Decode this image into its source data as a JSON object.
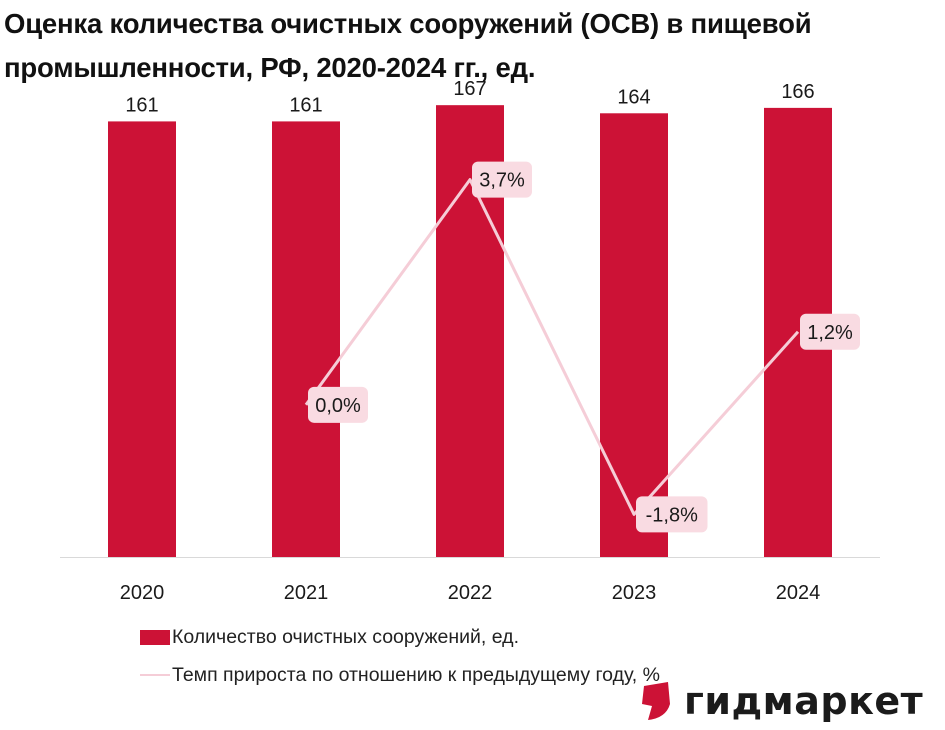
{
  "title_lines": [
    "Оценка количества очистных сооружений (ОСВ) в пищевой",
    "промышленности, РФ, 2020-2024 гг., ед."
  ],
  "chart_data": {
    "type": "bar",
    "title": "Оценка количества очистных сооружений (ОСВ) в пищевой промышленности, РФ, 2020-2024 гг., ед.",
    "categories": [
      "2020",
      "2021",
      "2022",
      "2023",
      "2024"
    ],
    "series": [
      {
        "name": "Количество очистных сооружений, ед.",
        "type": "bar",
        "values": [
          161,
          161,
          167,
          164,
          166
        ],
        "labels": [
          "161",
          "161",
          "167",
          "164",
          "166"
        ],
        "color": "#cc1236"
      },
      {
        "name": "Темп прироста по отношению к предыдущему году, %",
        "type": "line",
        "values": [
          null,
          0.0,
          3.7,
          -1.8,
          1.2
        ],
        "labels": [
          null,
          "0,0%",
          "3,7%",
          "-1,8%",
          "1,2%"
        ],
        "color": "#f5cdd7"
      }
    ],
    "bar_axis_range": [
      0,
      180
    ],
    "line_axis_range": [
      -2.5,
      5.5
    ],
    "grid": false,
    "legend_position": "bottom"
  },
  "legend": {
    "bar_label": "Количество очистных сооружений, ед.",
    "line_label": "Темп прироста по отношению к предыдущему году, %"
  },
  "logo": {
    "text": "гидмаркет",
    "icon": "gidmarket-logo-icon",
    "color": "#cc1236"
  },
  "colors": {
    "bar": "#cc1236",
    "line": "#f5cdd7",
    "label_box": "#f9dbe2",
    "axis": "#d9d9d9"
  }
}
